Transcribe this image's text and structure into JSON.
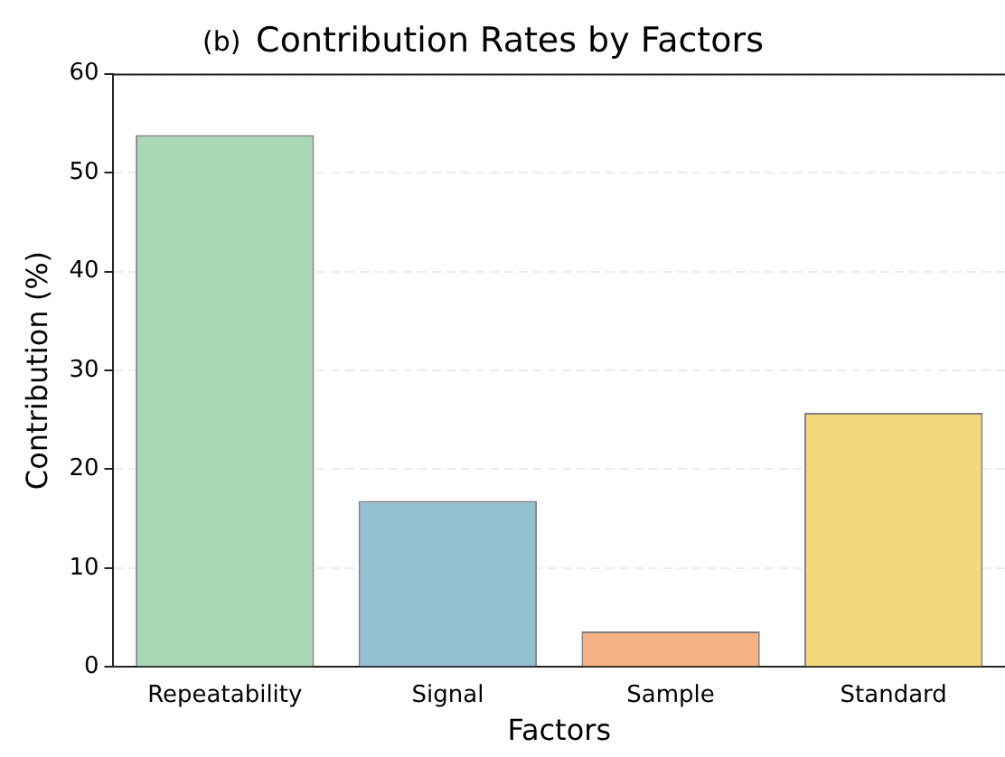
{
  "chart_data": {
    "type": "bar",
    "title": "Contribution Rates by Factors",
    "xlabel": "Factors",
    "ylabel": "Contribution (%)",
    "annotations": [
      "(b)"
    ],
    "categories": [
      "Repeatability",
      "Signal",
      "Sample",
      "Standard"
    ],
    "values": [
      53.8,
      16.8,
      3.6,
      25.7
    ],
    "colors": [
      "#a8d8b4",
      "#93c1d2",
      "#f4b183",
      "#f6d87c"
    ],
    "ylim": [
      0,
      60
    ],
    "yticks": [
      0,
      10,
      20,
      30,
      40,
      50,
      60
    ],
    "grid": "y",
    "legend": false
  }
}
